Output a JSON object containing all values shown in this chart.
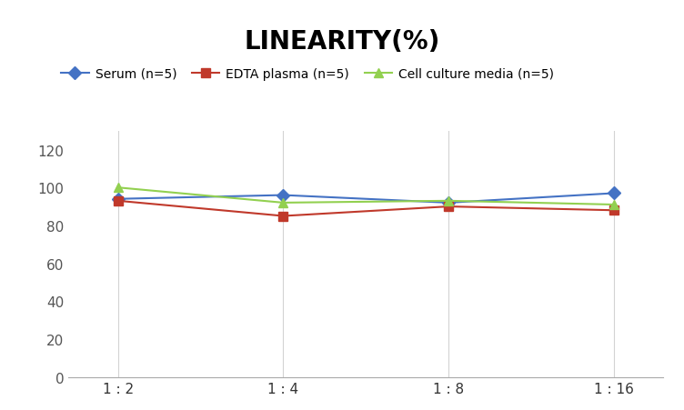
{
  "title": "LINEARITY(%)",
  "x_labels": [
    "1 : 2",
    "1 : 4",
    "1 : 8",
    "1 : 16"
  ],
  "x_positions": [
    0,
    1,
    2,
    3
  ],
  "series": [
    {
      "name": "Serum (n=5)",
      "values": [
        94,
        96,
        92,
        97
      ],
      "color": "#4472C4",
      "marker": "D",
      "linewidth": 1.5
    },
    {
      "name": "EDTA plasma (n=5)",
      "values": [
        93,
        85,
        90,
        88
      ],
      "color": "#C0392B",
      "marker": "s",
      "linewidth": 1.5
    },
    {
      "name": "Cell culture media (n=5)",
      "values": [
        100,
        92,
        93,
        91
      ],
      "color": "#92D050",
      "marker": "^",
      "linewidth": 1.5
    }
  ],
  "ylim": [
    0,
    130
  ],
  "yticks": [
    0,
    20,
    40,
    60,
    80,
    100,
    120
  ],
  "title_fontsize": 20,
  "title_fontweight": "bold",
  "legend_fontsize": 10,
  "tick_fontsize": 11,
  "background_color": "#FFFFFF",
  "grid_color": "#D3D3D3",
  "marker_size": 7
}
